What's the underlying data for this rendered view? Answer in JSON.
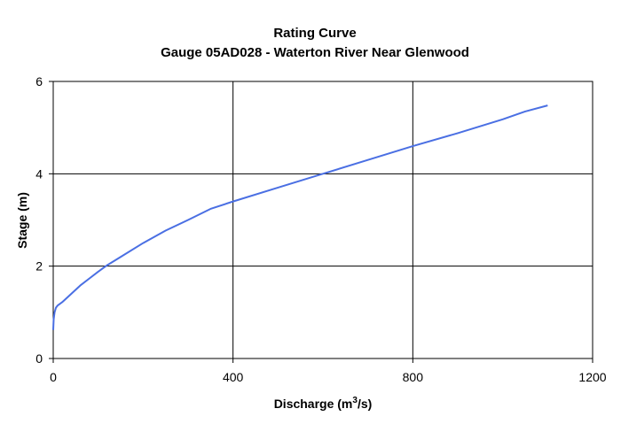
{
  "chart_data": {
    "type": "line",
    "title": "Rating Curve",
    "subtitle": "Gauge 05AD028 - Waterton River Near Glenwood",
    "xlabel_prefix": "Discharge (m",
    "xlabel_sup": "3",
    "xlabel_suffix": "/s)",
    "ylabel": "Stage (m)",
    "xlim": [
      0,
      1200
    ],
    "ylim": [
      0,
      6
    ],
    "x_ticks": [
      0,
      400,
      800,
      1200
    ],
    "y_ticks": [
      0,
      2,
      4,
      6
    ],
    "x_tick_labels": [
      "0",
      "400",
      "800",
      "1200"
    ],
    "y_tick_labels": [
      "0",
      "2",
      "4",
      "6"
    ],
    "grid": true,
    "legend": "none",
    "series": [
      {
        "color": "#4a6fe3",
        "points": [
          [
            0,
            0.62
          ],
          [
            1,
            0.85
          ],
          [
            3,
            1.0
          ],
          [
            6,
            1.1
          ],
          [
            10,
            1.15
          ],
          [
            20,
            1.22
          ],
          [
            40,
            1.4
          ],
          [
            60,
            1.58
          ],
          [
            80,
            1.73
          ],
          [
            100,
            1.88
          ],
          [
            120,
            2.02
          ],
          [
            150,
            2.2
          ],
          [
            200,
            2.5
          ],
          [
            250,
            2.77
          ],
          [
            300,
            3.0
          ],
          [
            350,
            3.24
          ],
          [
            400,
            3.4
          ],
          [
            500,
            3.7
          ],
          [
            600,
            4.0
          ],
          [
            700,
            4.3
          ],
          [
            800,
            4.6
          ],
          [
            900,
            4.88
          ],
          [
            1000,
            5.18
          ],
          [
            1050,
            5.35
          ],
          [
            1100,
            5.48
          ]
        ]
      }
    ]
  }
}
